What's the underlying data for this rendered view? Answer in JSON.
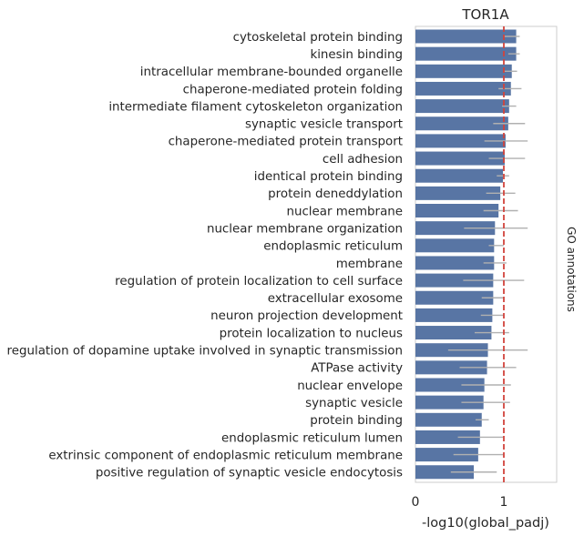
{
  "chart_data": {
    "type": "bar",
    "orientation": "horizontal",
    "title": "TOR1A",
    "xlabel": "-log10(global_padj)",
    "ylabel": "GO annotations",
    "xlim": [
      0,
      1.6
    ],
    "xticks": [
      "0",
      "1"
    ],
    "threshold": 1.0,
    "grid": false,
    "colors": {
      "bar": "#5875a4",
      "error": "#b0b0b0",
      "threshold": "#d1443c",
      "frame": "#cccccc"
    },
    "categories": [
      "cytoskeletal protein binding",
      "kinesin binding",
      "intracellular membrane-bounded organelle",
      "chaperone-mediated protein folding",
      "intermediate filament cytoskeleton organization",
      "synaptic vesicle transport",
      "chaperone-mediated protein transport",
      "cell adhesion",
      "identical protein binding",
      "protein deneddylation",
      "nuclear membrane",
      "nuclear membrane organization",
      "endoplasmic reticulum",
      "membrane",
      "regulation of protein localization to cell surface",
      "extracellular exosome",
      "neuron projection development",
      "protein localization to nucleus",
      "regulation of dopamine uptake involved in synaptic transmission",
      "ATPase activity",
      "nuclear envelope",
      "synaptic vesicle",
      "protein binding",
      "endoplasmic reticulum lumen",
      "extrinsic component of endoplasmic reticulum membrane",
      "positive regulation of synaptic vesicle endocytosis"
    ],
    "values": [
      1.14,
      1.14,
      1.09,
      1.08,
      1.06,
      1.05,
      1.02,
      1.01,
      0.99,
      0.96,
      0.94,
      0.9,
      0.89,
      0.89,
      0.88,
      0.88,
      0.87,
      0.86,
      0.82,
      0.81,
      0.78,
      0.77,
      0.75,
      0.73,
      0.71,
      0.66
    ],
    "error_low": [
      1.0,
      1.05,
      1.0,
      0.94,
      0.98,
      0.88,
      0.78,
      0.83,
      0.92,
      0.8,
      0.77,
      0.55,
      0.83,
      0.77,
      0.54,
      0.75,
      0.74,
      0.67,
      0.37,
      0.5,
      0.52,
      0.52,
      0.68,
      0.48,
      0.43,
      0.4
    ],
    "error_high": [
      1.18,
      1.18,
      1.15,
      1.2,
      1.14,
      1.24,
      1.27,
      1.24,
      1.06,
      1.13,
      1.16,
      1.27,
      1.0,
      1.03,
      1.23,
      1.0,
      1.0,
      1.06,
      1.27,
      1.14,
      1.08,
      1.07,
      0.83,
      1.0,
      1.0,
      0.92
    ]
  }
}
